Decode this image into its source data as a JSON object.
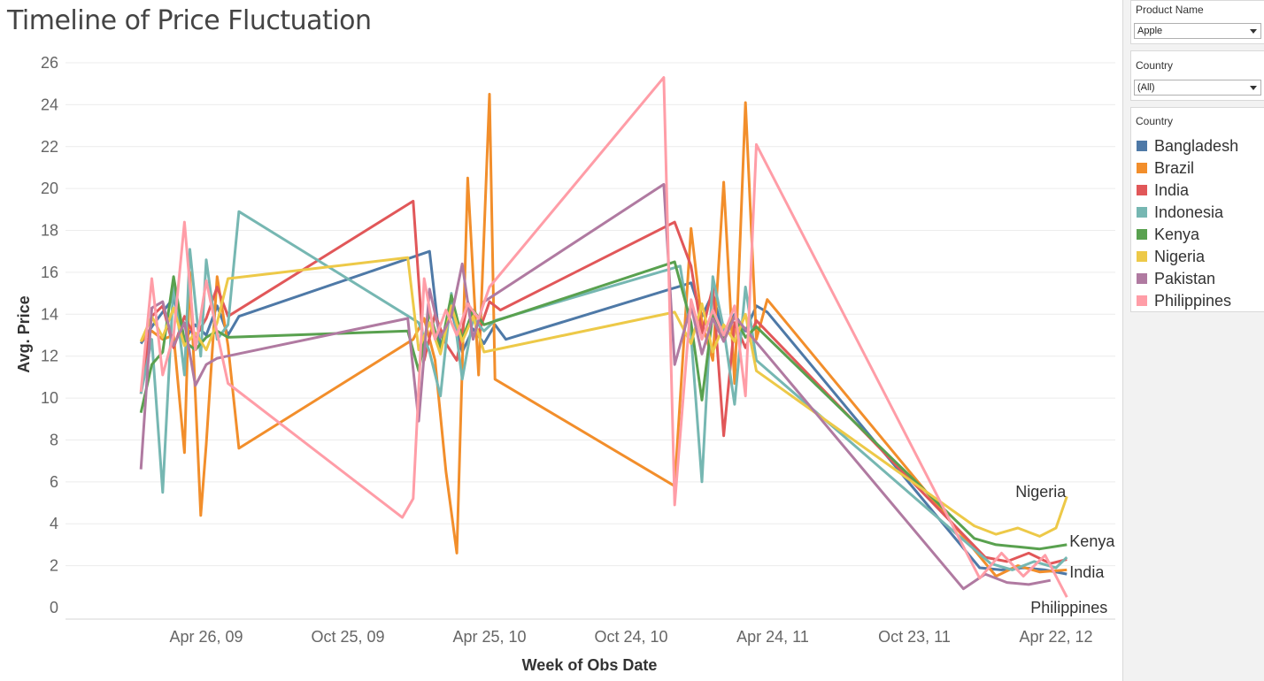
{
  "title": "Timeline of Price Fluctuation",
  "filters": [
    {
      "label": "Product Name",
      "value": "Apple"
    },
    {
      "label": "Country",
      "value": "(All)"
    }
  ],
  "legend": {
    "title": "Country"
  },
  "colors": {
    "Bangladesh": "#4e79a7",
    "Brazil": "#f28e2b",
    "India": "#e15759",
    "Indonesia": "#76b7b2",
    "Kenya": "#59a14f",
    "Nigeria": "#edc948",
    "Pakistan": "#b07aa1",
    "Philippines": "#ff9da7"
  },
  "chart_data": {
    "type": "line",
    "xlabel": "Week of Obs Date",
    "ylabel": "Avg. Price",
    "x_ticks": [
      "Apr 26, 09",
      "Oct 25, 09",
      "Apr 25, 10",
      "Oct 24, 10",
      "Apr 24, 11",
      "Oct 23, 11",
      "Apr 22, 12"
    ],
    "ylim": [
      0,
      26
    ],
    "y_ticks": [
      0,
      2,
      4,
      6,
      8,
      10,
      12,
      14,
      16,
      18,
      20,
      22,
      24,
      26
    ],
    "grid": "horizontal",
    "end_labels": [
      "Nigeria",
      "Kenya",
      "India",
      "Philippines"
    ],
    "series": [
      {
        "name": "Bangladesh",
        "points": [
          [
            "2009-02-01",
            12.6
          ],
          [
            "2009-02-15",
            13.4
          ],
          [
            "2009-03-01",
            14.1
          ],
          [
            "2009-03-15",
            14.8
          ],
          [
            "2009-03-29",
            12.8
          ],
          [
            "2009-04-12",
            13.5
          ],
          [
            "2009-04-26",
            13.0
          ],
          [
            "2009-05-10",
            14.4
          ],
          [
            "2009-05-24",
            13.0
          ],
          [
            "2009-06-07",
            13.9
          ],
          [
            "2010-02-07",
            17.0
          ],
          [
            "2010-02-21",
            12.4
          ],
          [
            "2010-03-07",
            14.2
          ],
          [
            "2010-03-21",
            12.2
          ],
          [
            "2010-04-04",
            13.3
          ],
          [
            "2010-04-18",
            12.6
          ],
          [
            "2010-05-02",
            13.5
          ],
          [
            "2010-05-16",
            12.8
          ],
          [
            "2011-01-09",
            15.5
          ],
          [
            "2011-01-23",
            13.9
          ],
          [
            "2011-02-06",
            15.0
          ],
          [
            "2011-02-20",
            12.9
          ],
          [
            "2011-03-06",
            14.0
          ],
          [
            "2011-03-20",
            13.2
          ],
          [
            "2011-04-03",
            14.4
          ],
          [
            "2011-04-17",
            14.1
          ],
          [
            "2012-01-15",
            1.9
          ],
          [
            "2012-02-12",
            1.8
          ],
          [
            "2012-03-11",
            1.9
          ],
          [
            "2012-04-08",
            1.8
          ],
          [
            "2012-05-06",
            1.6
          ]
        ]
      },
      {
        "name": "Brazil",
        "points": [
          [
            "2009-02-01",
            12.7
          ],
          [
            "2009-02-15",
            13.2
          ],
          [
            "2009-03-01",
            12.8
          ],
          [
            "2009-03-15",
            13.0
          ],
          [
            "2009-03-29",
            7.4
          ],
          [
            "2009-04-05",
            16.0
          ],
          [
            "2009-04-19",
            4.4
          ],
          [
            "2009-04-26",
            7.8
          ],
          [
            "2009-05-10",
            15.8
          ],
          [
            "2009-05-24",
            12.5
          ],
          [
            "2009-06-07",
            7.6
          ],
          [
            "2010-01-17",
            12.8
          ],
          [
            "2010-01-31",
            13.8
          ],
          [
            "2010-02-14",
            11.8
          ],
          [
            "2010-02-28",
            6.5
          ],
          [
            "2010-03-14",
            2.6
          ],
          [
            "2010-03-28",
            20.5
          ],
          [
            "2010-04-11",
            11.1
          ],
          [
            "2010-04-25",
            24.5
          ],
          [
            "2010-05-02",
            10.9
          ],
          [
            "2010-12-19",
            5.8
          ],
          [
            "2011-01-09",
            18.1
          ],
          [
            "2011-01-23",
            13.6
          ],
          [
            "2011-02-06",
            11.8
          ],
          [
            "2011-02-20",
            20.3
          ],
          [
            "2011-03-06",
            10.7
          ],
          [
            "2011-03-20",
            24.1
          ],
          [
            "2011-04-03",
            12.8
          ],
          [
            "2011-04-17",
            14.7
          ],
          [
            "2012-02-05",
            1.5
          ],
          [
            "2012-03-04",
            2.0
          ],
          [
            "2012-04-01",
            1.7
          ],
          [
            "2012-05-06",
            1.8
          ]
        ]
      },
      {
        "name": "India",
        "points": [
          [
            "2009-02-01",
            10.2
          ],
          [
            "2009-02-15",
            13.9
          ],
          [
            "2009-03-01",
            14.4
          ],
          [
            "2009-03-15",
            12.4
          ],
          [
            "2009-03-29",
            13.9
          ],
          [
            "2009-04-12",
            12.9
          ],
          [
            "2009-04-26",
            13.8
          ],
          [
            "2009-05-10",
            15.3
          ],
          [
            "2009-05-24",
            13.9
          ],
          [
            "2010-01-17",
            19.4
          ],
          [
            "2010-01-31",
            11.8
          ],
          [
            "2010-02-14",
            14.0
          ],
          [
            "2010-02-28",
            12.6
          ],
          [
            "2010-03-14",
            11.8
          ],
          [
            "2010-03-28",
            14.6
          ],
          [
            "2010-04-11",
            13.1
          ],
          [
            "2010-04-25",
            14.6
          ],
          [
            "2010-05-09",
            14.2
          ],
          [
            "2010-12-19",
            18.4
          ],
          [
            "2011-01-09",
            16.3
          ],
          [
            "2011-01-23",
            13.1
          ],
          [
            "2011-02-06",
            15.3
          ],
          [
            "2011-02-20",
            8.2
          ],
          [
            "2011-03-06",
            13.6
          ],
          [
            "2011-03-20",
            12.4
          ],
          [
            "2011-04-03",
            13.7
          ],
          [
            "2012-01-22",
            2.4
          ],
          [
            "2012-02-19",
            2.2
          ],
          [
            "2012-03-18",
            2.6
          ],
          [
            "2012-04-15",
            2.1
          ],
          [
            "2012-05-06",
            2.3
          ]
        ]
      },
      {
        "name": "Indonesia",
        "points": [
          [
            "2009-02-01",
            10.2
          ],
          [
            "2009-02-15",
            12.8
          ],
          [
            "2009-03-01",
            5.5
          ],
          [
            "2009-03-15",
            15.5
          ],
          [
            "2009-03-29",
            11.1
          ],
          [
            "2009-04-05",
            17.1
          ],
          [
            "2009-04-19",
            12.0
          ],
          [
            "2009-04-26",
            16.6
          ],
          [
            "2009-05-10",
            12.8
          ],
          [
            "2009-05-24",
            13.5
          ],
          [
            "2009-06-07",
            18.9
          ],
          [
            "2010-01-24",
            13.6
          ],
          [
            "2010-02-07",
            12.2
          ],
          [
            "2010-02-21",
            10.1
          ],
          [
            "2010-03-07",
            15.0
          ],
          [
            "2010-03-21",
            10.9
          ],
          [
            "2010-04-04",
            13.8
          ],
          [
            "2010-04-18",
            13.2
          ],
          [
            "2010-05-02",
            13.7
          ],
          [
            "2010-12-26",
            16.3
          ],
          [
            "2011-01-09",
            13.0
          ],
          [
            "2011-01-23",
            6.0
          ],
          [
            "2011-02-06",
            15.8
          ],
          [
            "2011-02-20",
            13.3
          ],
          [
            "2011-03-06",
            9.7
          ],
          [
            "2011-03-20",
            15.3
          ],
          [
            "2011-04-03",
            11.8
          ],
          [
            "2012-01-29",
            2.1
          ],
          [
            "2012-02-26",
            1.8
          ],
          [
            "2012-03-25",
            2.2
          ],
          [
            "2012-04-22",
            1.9
          ],
          [
            "2012-05-06",
            2.4
          ]
        ]
      },
      {
        "name": "Kenya",
        "points": [
          [
            "2009-02-01",
            9.3
          ],
          [
            "2009-02-15",
            11.6
          ],
          [
            "2009-03-01",
            12.2
          ],
          [
            "2009-03-15",
            15.8
          ],
          [
            "2009-03-29",
            12.7
          ],
          [
            "2009-04-12",
            12.3
          ],
          [
            "2009-04-26",
            12.9
          ],
          [
            "2009-05-10",
            13.2
          ],
          [
            "2009-05-24",
            12.9
          ],
          [
            "2010-01-10",
            13.2
          ],
          [
            "2010-01-24",
            11.3
          ],
          [
            "2010-02-07",
            14.1
          ],
          [
            "2010-02-21",
            12.3
          ],
          [
            "2010-03-07",
            14.9
          ],
          [
            "2010-03-21",
            12.8
          ],
          [
            "2010-04-04",
            14.2
          ],
          [
            "2010-04-18",
            13.5
          ],
          [
            "2010-12-19",
            16.5
          ],
          [
            "2011-01-09",
            13.6
          ],
          [
            "2011-01-23",
            9.9
          ],
          [
            "2011-02-06",
            14.0
          ],
          [
            "2011-02-20",
            12.8
          ],
          [
            "2011-03-06",
            13.9
          ],
          [
            "2011-03-20",
            12.9
          ],
          [
            "2011-04-03",
            13.4
          ],
          [
            "2012-01-08",
            3.3
          ],
          [
            "2012-02-05",
            3.0
          ],
          [
            "2012-03-04",
            2.9
          ],
          [
            "2012-04-01",
            2.8
          ],
          [
            "2012-05-06",
            3.0
          ]
        ]
      },
      {
        "name": "Nigeria",
        "points": [
          [
            "2009-02-01",
            12.7
          ],
          [
            "2009-02-15",
            13.9
          ],
          [
            "2009-03-01",
            12.9
          ],
          [
            "2009-03-15",
            14.3
          ],
          [
            "2009-03-29",
            12.5
          ],
          [
            "2009-04-12",
            13.1
          ],
          [
            "2009-04-26",
            12.3
          ],
          [
            "2009-05-10",
            13.6
          ],
          [
            "2009-05-24",
            15.7
          ],
          [
            "2010-01-10",
            16.7
          ],
          [
            "2010-01-24",
            12.3
          ],
          [
            "2010-02-07",
            13.6
          ],
          [
            "2010-02-21",
            12.1
          ],
          [
            "2010-03-07",
            14.4
          ],
          [
            "2010-03-21",
            12.7
          ],
          [
            "2010-04-04",
            13.9
          ],
          [
            "2010-04-18",
            12.2
          ],
          [
            "2010-12-19",
            14.1
          ],
          [
            "2011-01-09",
            12.6
          ],
          [
            "2011-01-23",
            14.5
          ],
          [
            "2011-02-06",
            12.2
          ],
          [
            "2011-02-20",
            13.5
          ],
          [
            "2011-03-06",
            12.7
          ],
          [
            "2011-03-20",
            14.0
          ],
          [
            "2011-04-03",
            11.3
          ],
          [
            "2012-01-08",
            3.9
          ],
          [
            "2012-02-05",
            3.5
          ],
          [
            "2012-03-04",
            3.8
          ],
          [
            "2012-04-01",
            3.4
          ],
          [
            "2012-04-22",
            3.8
          ],
          [
            "2012-05-06",
            5.3
          ]
        ]
      },
      {
        "name": "Pakistan",
        "points": [
          [
            "2009-02-01",
            6.6
          ],
          [
            "2009-02-15",
            14.3
          ],
          [
            "2009-03-01",
            14.6
          ],
          [
            "2009-03-15",
            12.5
          ],
          [
            "2009-03-29",
            13.6
          ],
          [
            "2009-04-12",
            10.6
          ],
          [
            "2009-04-26",
            11.6
          ],
          [
            "2009-05-10",
            11.9
          ],
          [
            "2010-01-10",
            13.8
          ],
          [
            "2010-01-24",
            8.9
          ],
          [
            "2010-02-07",
            15.2
          ],
          [
            "2010-02-21",
            12.9
          ],
          [
            "2010-03-07",
            13.9
          ],
          [
            "2010-03-21",
            16.4
          ],
          [
            "2010-04-04",
            12.8
          ],
          [
            "2010-04-18",
            14.6
          ],
          [
            "2010-12-05",
            20.2
          ],
          [
            "2010-12-19",
            11.6
          ],
          [
            "2011-01-09",
            14.4
          ],
          [
            "2011-01-23",
            12.1
          ],
          [
            "2011-02-06",
            13.8
          ],
          [
            "2011-02-20",
            12.7
          ],
          [
            "2011-03-06",
            13.9
          ],
          [
            "2011-12-25",
            0.9
          ],
          [
            "2012-01-22",
            1.6
          ],
          [
            "2012-02-19",
            1.2
          ],
          [
            "2012-03-18",
            1.1
          ],
          [
            "2012-04-15",
            1.3
          ]
        ]
      },
      {
        "name": "Philippines",
        "points": [
          [
            "2009-02-01",
            10.3
          ],
          [
            "2009-02-15",
            15.7
          ],
          [
            "2009-03-01",
            11.1
          ],
          [
            "2009-03-15",
            13.0
          ],
          [
            "2009-03-29",
            18.4
          ],
          [
            "2009-04-12",
            12.3
          ],
          [
            "2009-04-26",
            15.6
          ],
          [
            "2009-05-10",
            13.1
          ],
          [
            "2009-05-24",
            10.7
          ],
          [
            "2010-01-03",
            4.3
          ],
          [
            "2010-01-17",
            5.2
          ],
          [
            "2010-01-31",
            15.7
          ],
          [
            "2010-02-14",
            12.8
          ],
          [
            "2010-02-28",
            14.2
          ],
          [
            "2010-03-14",
            13.0
          ],
          [
            "2010-03-28",
            14.5
          ],
          [
            "2010-04-11",
            13.8
          ],
          [
            "2010-04-25",
            15.3
          ],
          [
            "2010-12-05",
            25.3
          ],
          [
            "2010-12-19",
            4.9
          ],
          [
            "2011-01-09",
            14.7
          ],
          [
            "2011-01-23",
            12.8
          ],
          [
            "2011-02-06",
            14.2
          ],
          [
            "2011-02-20",
            13.0
          ],
          [
            "2011-03-06",
            14.4
          ],
          [
            "2011-03-20",
            10.1
          ],
          [
            "2011-04-03",
            22.1
          ],
          [
            "2012-01-15",
            1.4
          ],
          [
            "2012-02-12",
            2.6
          ],
          [
            "2012-03-11",
            1.5
          ],
          [
            "2012-04-08",
            2.5
          ],
          [
            "2012-05-06",
            0.5
          ]
        ]
      }
    ]
  }
}
